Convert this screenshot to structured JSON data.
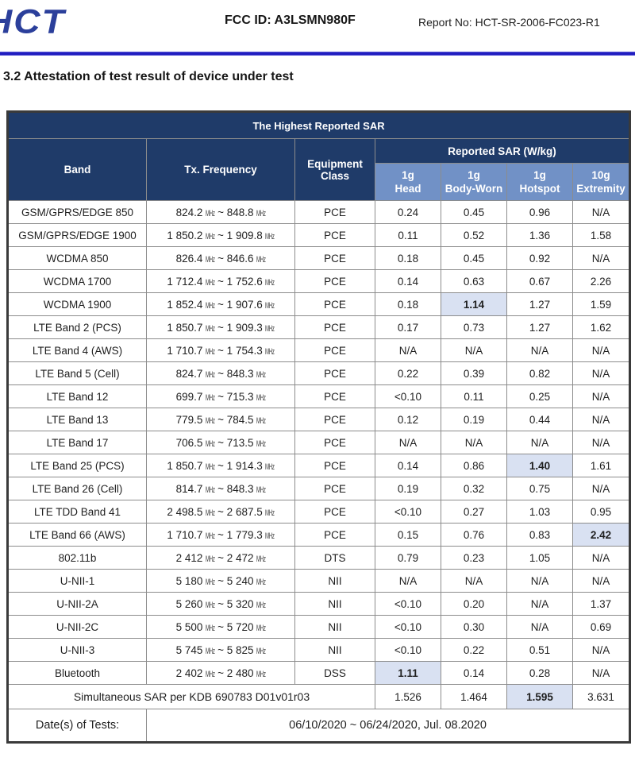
{
  "header": {
    "logo_text": "HCT",
    "fcc_id": "FCC ID: A3LSMN980F",
    "report_no": "Report No: HCT-SR-2006-FC023-R1"
  },
  "section_title": "3.2 Attestation of test result of device under test",
  "colors": {
    "header_navy": "#1f3b69",
    "subheader_blue": "#7191c6",
    "highlight_cell": "#d9e1f2",
    "rule_blue": "#201dc0",
    "logo_blue": "#2b3f9b"
  },
  "table": {
    "title": "The Highest Reported SAR",
    "col_band": "Band",
    "col_freq": "Tx. Frequency",
    "col_class_top": "Equipment",
    "col_class_bottom": "Class",
    "sar_group": "Reported SAR (W/kg)",
    "sar_cols": [
      {
        "top": "1g",
        "bottom": "Head"
      },
      {
        "top": "1g",
        "bottom": "Body-Worn"
      },
      {
        "top": "1g",
        "bottom": "Hotspot"
      },
      {
        "top": "10g",
        "bottom": "Extremity"
      }
    ],
    "rows": [
      {
        "band": "GSM/GPRS/EDGE 850",
        "freq": "824.2 MHz ~ 848.8 MHz",
        "cls": "PCE",
        "values": [
          "0.24",
          "0.45",
          "0.96",
          "N/A"
        ],
        "highlight": -1
      },
      {
        "band": "GSM/GPRS/EDGE 1900",
        "freq": "1 850.2 MHz ~ 1 909.8 MHz",
        "cls": "PCE",
        "values": [
          "0.11",
          "0.52",
          "1.36",
          "1.58"
        ],
        "highlight": -1
      },
      {
        "band": "WCDMA 850",
        "freq": "826.4 MHz ~ 846.6 MHz",
        "cls": "PCE",
        "values": [
          "0.18",
          "0.45",
          "0.92",
          "N/A"
        ],
        "highlight": -1
      },
      {
        "band": "WCDMA 1700",
        "freq": "1 712.4 MHz ~ 1 752.6 MHz",
        "cls": "PCE",
        "values": [
          "0.14",
          "0.63",
          "0.67",
          "2.26"
        ],
        "highlight": -1
      },
      {
        "band": "WCDMA 1900",
        "freq": "1 852.4 MHz ~ 1 907.6 MHz",
        "cls": "PCE",
        "values": [
          "0.18",
          "1.14",
          "1.27",
          "1.59"
        ],
        "highlight": 1
      },
      {
        "band": "LTE Band 2 (PCS)",
        "freq": "1 850.7 MHz ~ 1 909.3 MHz",
        "cls": "PCE",
        "values": [
          "0.17",
          "0.73",
          "1.27",
          "1.62"
        ],
        "highlight": -1
      },
      {
        "band": "LTE Band 4 (AWS)",
        "freq": "1 710.7 MHz ~ 1 754.3 MHz",
        "cls": "PCE",
        "values": [
          "N/A",
          "N/A",
          "N/A",
          "N/A"
        ],
        "highlight": -1
      },
      {
        "band": "LTE Band 5 (Cell)",
        "freq": "824.7 MHz ~ 848.3 MHz",
        "cls": "PCE",
        "values": [
          "0.22",
          "0.39",
          "0.82",
          "N/A"
        ],
        "highlight": -1
      },
      {
        "band": "LTE Band 12",
        "freq": "699.7 MHz ~ 715.3 MHz",
        "cls": "PCE",
        "values": [
          "<0.10",
          "0.11",
          "0.25",
          "N/A"
        ],
        "highlight": -1
      },
      {
        "band": "LTE Band 13",
        "freq": "779.5 MHz ~ 784.5 MHz",
        "cls": "PCE",
        "values": [
          "0.12",
          "0.19",
          "0.44",
          "N/A"
        ],
        "highlight": -1
      },
      {
        "band": "LTE Band 17",
        "freq": "706.5 MHz ~ 713.5 MHz",
        "cls": "PCE",
        "values": [
          "N/A",
          "N/A",
          "N/A",
          "N/A"
        ],
        "highlight": -1
      },
      {
        "band": "LTE Band 25 (PCS)",
        "freq": "1 850.7 MHz ~ 1 914.3 MHz",
        "cls": "PCE",
        "values": [
          "0.14",
          "0.86",
          "1.40",
          "1.61"
        ],
        "highlight": 2
      },
      {
        "band": "LTE Band 26 (Cell)",
        "freq": "814.7 MHz ~ 848.3 MHz",
        "cls": "PCE",
        "values": [
          "0.19",
          "0.32",
          "0.75",
          "N/A"
        ],
        "highlight": -1
      },
      {
        "band": "LTE TDD Band 41",
        "freq": "2 498.5 MHz ~ 2 687.5 MHz",
        "cls": "PCE",
        "values": [
          "<0.10",
          "0.27",
          "1.03",
          "0.95"
        ],
        "highlight": -1
      },
      {
        "band": "LTE Band 66 (AWS)",
        "freq": "1 710.7 MHz ~ 1 779.3 MHz",
        "cls": "PCE",
        "values": [
          "0.15",
          "0.76",
          "0.83",
          "2.42"
        ],
        "highlight": 3
      },
      {
        "band": "802.11b",
        "freq": "2 412 MHz ~ 2 472 MHz",
        "cls": "DTS",
        "values": [
          "0.79",
          "0.23",
          "1.05",
          "N/A"
        ],
        "highlight": -1
      },
      {
        "band": "U-NII-1",
        "freq": "5 180 MHz ~ 5 240 MHz",
        "cls": "NII",
        "values": [
          "N/A",
          "N/A",
          "N/A",
          "N/A"
        ],
        "highlight": -1
      },
      {
        "band": "U-NII-2A",
        "freq": "5 260 MHz ~ 5 320 MHz",
        "cls": "NII",
        "values": [
          "<0.10",
          "0.20",
          "N/A",
          "1.37"
        ],
        "highlight": -1
      },
      {
        "band": "U-NII-2C",
        "freq": "5 500 MHz ~ 5 720 MHz",
        "cls": "NII",
        "values": [
          "<0.10",
          "0.30",
          "N/A",
          "0.69"
        ],
        "highlight": -1
      },
      {
        "band": "U-NII-3",
        "freq": "5 745 MHz ~ 5 825 MHz",
        "cls": "NII",
        "values": [
          "<0.10",
          "0.22",
          "0.51",
          "N/A"
        ],
        "highlight": -1
      },
      {
        "band": "Bluetooth",
        "freq": "2 402 MHz ~ 2 480 MHz",
        "cls": "DSS",
        "values": [
          "1.11",
          "0.14",
          "0.28",
          "N/A"
        ],
        "highlight": 0
      }
    ],
    "simultaneous": {
      "label": "Simultaneous SAR per KDB 690783 D01v01r03",
      "values": [
        "1.526",
        "1.464",
        "1.595",
        "3.631"
      ],
      "highlight": 2
    },
    "dates": {
      "label": "Date(s) of Tests:",
      "value": "06/10/2020 ~ 06/24/2020, Jul. 08.2020"
    }
  }
}
